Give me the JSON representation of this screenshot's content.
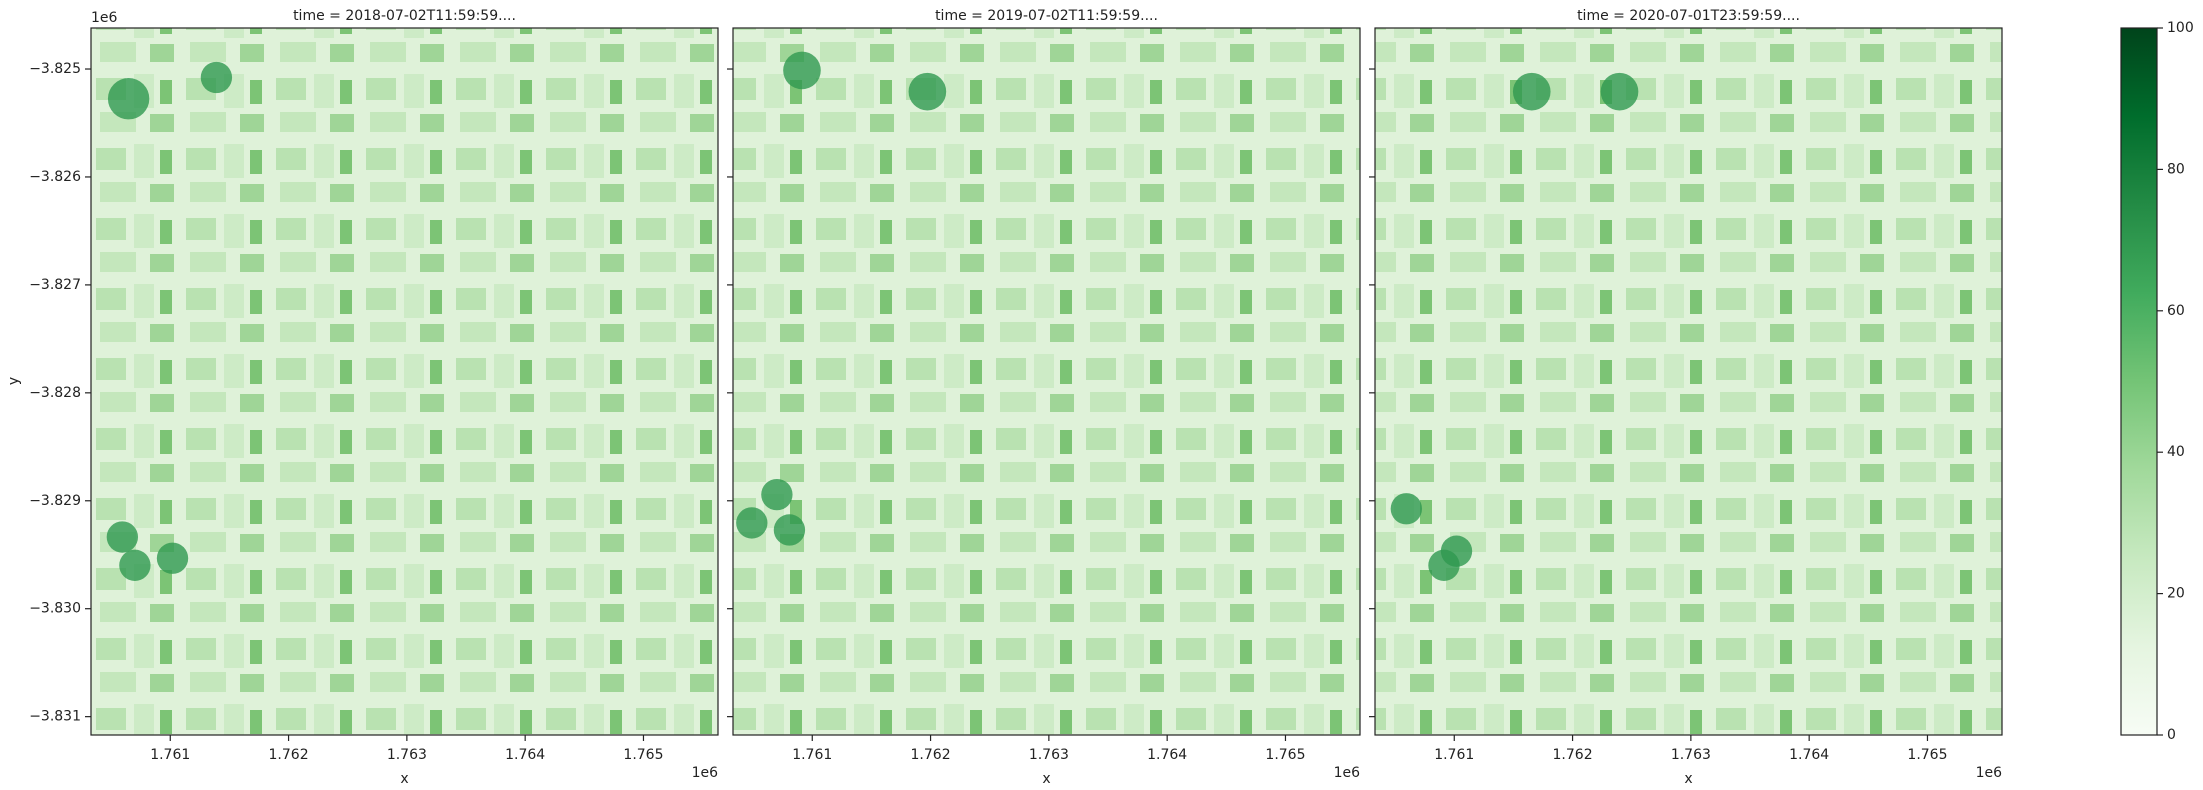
{
  "chart_data": {
    "type": "image",
    "panels": [
      {
        "title": "time = 2018-07-02T11:59:59...."
      },
      {
        "title": "time = 2019-07-02T11:59:59...."
      },
      {
        "title": "time = 2020-07-01T23:59:59...."
      }
    ],
    "xlabel": "x",
    "ylabel": "y",
    "x_offset": "1e6",
    "y_offset": "1e6",
    "xlim": [
      1.76033,
      1.76563
    ],
    "ylim": [
      -3.83117,
      -3.82462
    ],
    "xticks": [
      1.761,
      1.762,
      1.763,
      1.764,
      1.765
    ],
    "yticks": [
      {
        "value": -3.825,
        "label": "−3.825"
      },
      {
        "value": -3.826,
        "label": "−3.826"
      },
      {
        "value": -3.827,
        "label": "−3.827"
      },
      {
        "value": -3.828,
        "label": "−3.828"
      },
      {
        "value": -3.829,
        "label": "−3.829"
      },
      {
        "value": -3.83,
        "label": "−3.830"
      },
      {
        "value": -3.831,
        "label": "−3.831"
      }
    ],
    "colorbar": {
      "clim": [
        0,
        100
      ],
      "ticks": [
        0,
        20,
        40,
        60,
        80,
        100
      ],
      "colors": [
        "#f7fcf5",
        "#e5f5e0",
        "#c7e9c0",
        "#a1d99b",
        "#74c476",
        "#41ab5d",
        "#238b45",
        "#006d2c",
        "#00441b"
      ]
    }
  }
}
